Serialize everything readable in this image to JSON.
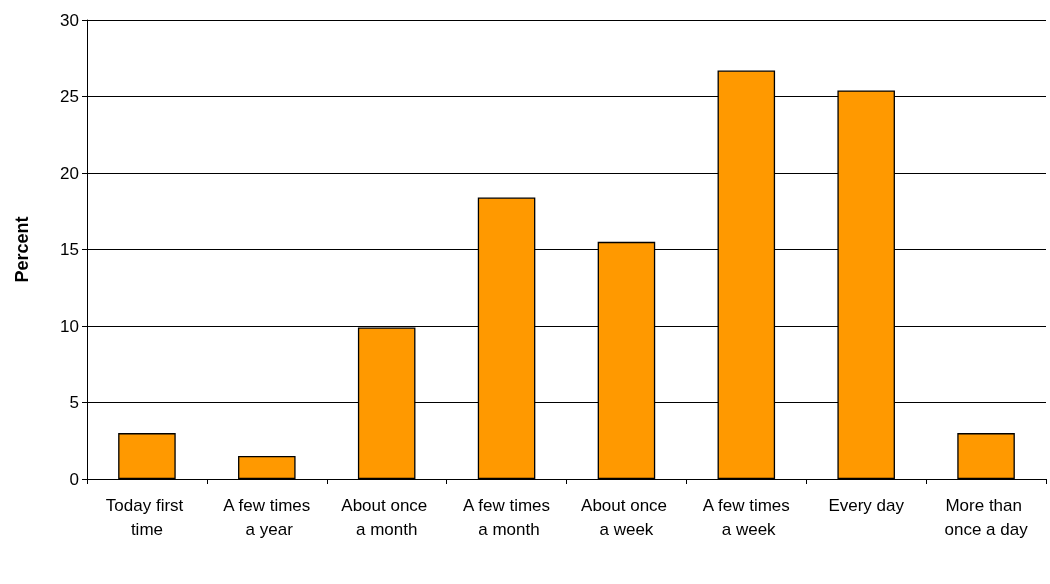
{
  "chart_data": {
    "type": "bar",
    "ylabel": "Percent",
    "categories": [
      "Today first time",
      "A few times a year",
      "About once a month",
      "A few times a month",
      "About once a week",
      "A few times a week",
      "Every day",
      "More than once a day"
    ],
    "values": [
      3.0,
      1.5,
      9.9,
      18.4,
      15.5,
      26.7,
      25.4,
      3.0
    ],
    "color": "#ff9900",
    "ylim": [
      0,
      30
    ],
    "yticks": [
      0,
      5,
      10,
      15,
      20,
      25,
      30
    ],
    "grid": "y"
  }
}
